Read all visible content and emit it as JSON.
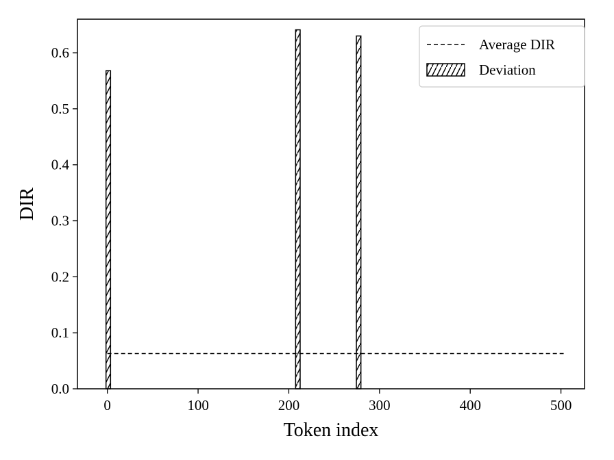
{
  "chart_data": {
    "type": "bar",
    "xlabel": "Token index",
    "ylabel": "DIR",
    "xlim": [
      -33,
      526
    ],
    "ylim": [
      0,
      0.66
    ],
    "xticks": [
      {
        "value": 0,
        "label": "0"
      },
      {
        "value": 100,
        "label": "100"
      },
      {
        "value": 200,
        "label": "200"
      },
      {
        "value": 300,
        "label": "300"
      },
      {
        "value": 400,
        "label": "400"
      },
      {
        "value": 500,
        "label": "500"
      }
    ],
    "yticks": [
      {
        "value": 0.0,
        "label": "0.0"
      },
      {
        "value": 0.1,
        "label": "0.1"
      },
      {
        "value": 0.2,
        "label": "0.2"
      },
      {
        "value": 0.3,
        "label": "0.3"
      },
      {
        "value": 0.4,
        "label": "0.4"
      },
      {
        "value": 0.5,
        "label": "0.5"
      },
      {
        "value": 0.6,
        "label": "0.6"
      }
    ],
    "average_line": {
      "label": "Average DIR",
      "value": 0.063,
      "x_start": 0,
      "x_end": 503,
      "style": "dashed",
      "color": "#000000"
    },
    "bars": {
      "label": "Deviation",
      "hatch": "diagonal",
      "bar_width_tokens": 5,
      "points": [
        {
          "x": 1,
          "value": 0.568
        },
        {
          "x": 210,
          "value": 0.641
        },
        {
          "x": 277,
          "value": 0.63
        }
      ]
    },
    "legend": {
      "position": "top-right",
      "entries": [
        {
          "label": "Average DIR",
          "kind": "dashed-line"
        },
        {
          "label": "Deviation",
          "kind": "hatched-patch"
        }
      ]
    },
    "grid": false
  }
}
